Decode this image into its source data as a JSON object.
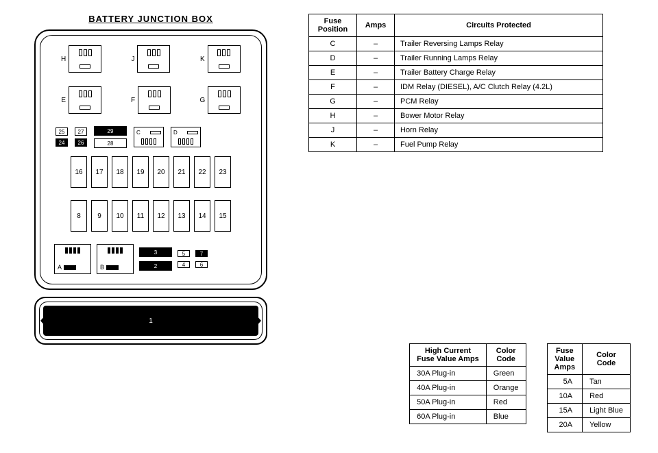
{
  "title": "BATTERY JUNCTION BOX",
  "relays_top": [
    {
      "letter": "H"
    },
    {
      "letter": "J"
    },
    {
      "letter": "K"
    },
    {
      "letter": "E"
    },
    {
      "letter": "F"
    },
    {
      "letter": "G"
    }
  ],
  "mid": {
    "c25": "25",
    "c27": "27",
    "c29": "29",
    "c24": "24",
    "c26": "26",
    "c28": "28",
    "C": "C",
    "D": "D"
  },
  "fuse_row1": [
    "16",
    "17",
    "18",
    "19",
    "20",
    "21",
    "22",
    "23"
  ],
  "fuse_row2": [
    "8",
    "9",
    "10",
    "11",
    "12",
    "13",
    "14",
    "15"
  ],
  "bottom": {
    "A": "A",
    "B": "B",
    "f3": "3",
    "f2": "2",
    "f5": "5",
    "f7": "7",
    "f4": "4",
    "f6": "6"
  },
  "footer_label": "1",
  "circuits_table": {
    "headers": [
      "Fuse\nPosition",
      "Amps",
      "Circuits Protected"
    ],
    "rows": [
      [
        "C",
        "–",
        "Trailer Reversing Lamps Relay"
      ],
      [
        "D",
        "–",
        "Trailer Running Lamps Relay"
      ],
      [
        "E",
        "–",
        "Trailer Battery Charge Relay"
      ],
      [
        "F",
        "–",
        "IDM Relay (DIESEL), A/C Clutch Relay (4.2L)"
      ],
      [
        "G",
        "–",
        "PCM Relay"
      ],
      [
        "H",
        "–",
        "Bower Motor Relay"
      ],
      [
        "J",
        "–",
        "Horn Relay"
      ],
      [
        "K",
        "–",
        "Fuel Pump Relay"
      ]
    ]
  },
  "high_current_table": {
    "headers": [
      "High Current\nFuse Value Amps",
      "Color\nCode"
    ],
    "rows": [
      [
        "30A Plug-in",
        "Green"
      ],
      [
        "40A Plug-in",
        "Orange"
      ],
      [
        "50A Plug-in",
        "Red"
      ],
      [
        "60A Plug-in",
        "Blue"
      ]
    ]
  },
  "fuse_value_table": {
    "headers": [
      "Fuse\nValue\nAmps",
      "Color\nCode"
    ],
    "rows": [
      [
        "5A",
        "Tan"
      ],
      [
        "10A",
        "Red"
      ],
      [
        "15A",
        "Light Blue"
      ],
      [
        "20A",
        "Yellow"
      ]
    ]
  }
}
